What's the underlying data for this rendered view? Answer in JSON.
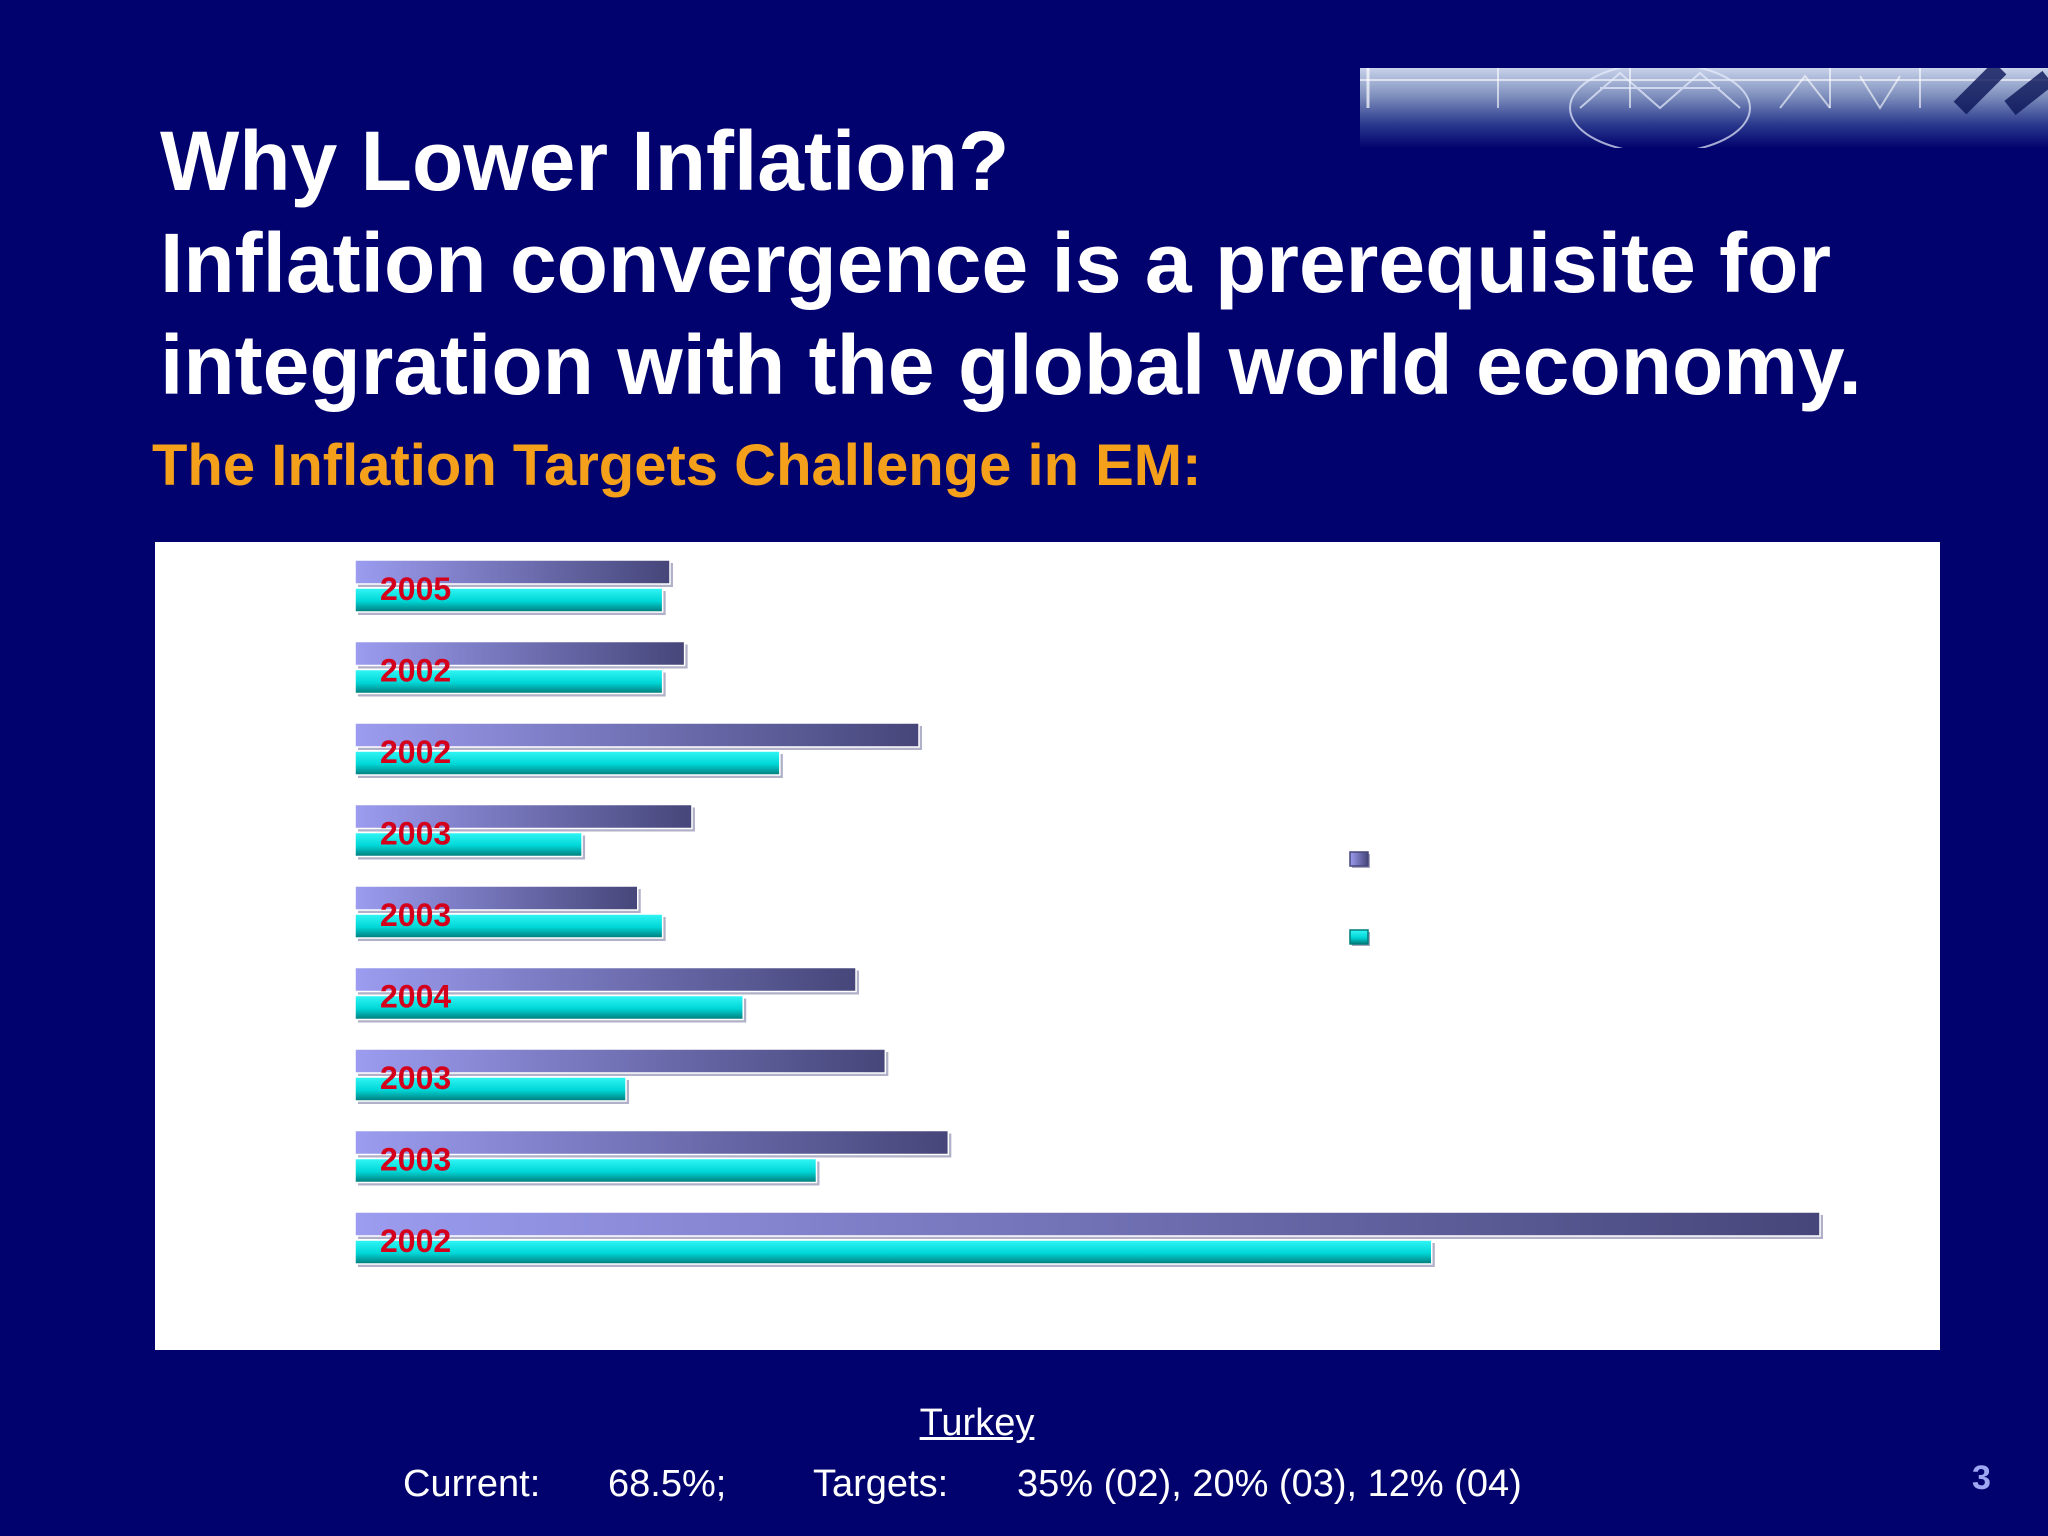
{
  "slide": {
    "title_lines": [
      "Why Lower Inflation?",
      "Inflation convergence is a prerequisite for",
      "integration with the global world economy."
    ],
    "subtitle": "The Inflation Targets Challenge in EM:",
    "page_number": "3"
  },
  "chart_data": {
    "type": "bar",
    "orientation": "horizontal",
    "categories": [
      "2005",
      "2002",
      "2002",
      "2003",
      "2003",
      "2004",
      "2003",
      "2003",
      "2002"
    ],
    "series": [
      {
        "values": [
          21.5,
          22.5,
          38.5,
          23,
          19.3,
          34.2,
          36.2,
          40.5,
          100
        ]
      },
      {
        "values": [
          21,
          21,
          29,
          15.5,
          21,
          26.5,
          18.5,
          31.5,
          73.5
        ]
      }
    ],
    "legend_placement": "right",
    "colors": {
      "series1_light": "#9c9cf0",
      "series1_dark": "#46467a",
      "series2_light": "#33f6f6",
      "series2_dark": "#007a7a",
      "year_label": "#d4001b"
    }
  },
  "caption": {
    "country": "Turkey",
    "current_label": "Current:",
    "current_value": "68.5%;",
    "targets_label": "Targets:",
    "targets_value": "35% (02), 20% (03), 12% (04)"
  },
  "colors": {
    "background": "#02026e",
    "title": "#ffffff",
    "subtitle": "#f5a01a",
    "page_number": "#9ea8f2"
  }
}
